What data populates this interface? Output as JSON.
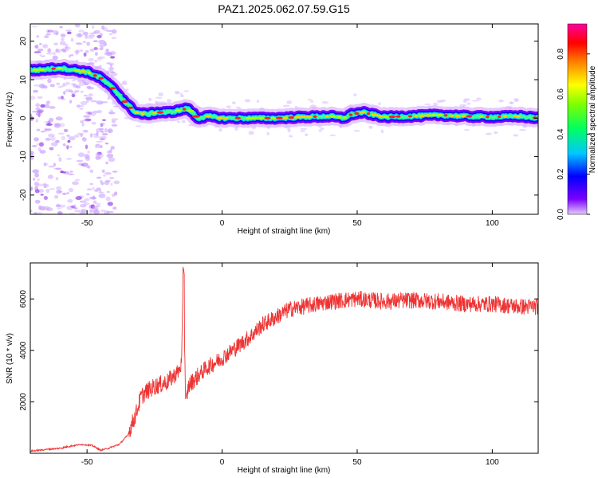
{
  "title": "PAZ1.2025.062.07.59.G15",
  "chart_data": [
    {
      "type": "heatmap",
      "xlabel": "Height of straight line (km)",
      "ylabel": "Frequency (Hz)",
      "xlim": [
        -71,
        117
      ],
      "ylim": [
        -25,
        24.5
      ],
      "xticks": [
        -50,
        0,
        50,
        100
      ],
      "yticks": [
        -20,
        -10,
        0,
        10,
        20
      ],
      "colorbar": {
        "label": "Normalized spectral amplitude",
        "range": [
          0,
          0.95
        ],
        "ticks": [
          0.0,
          0.2,
          0.4,
          0.6,
          0.8
        ],
        "colormap": [
          "#d9b3ff",
          "#7a00ff",
          "#0000ff",
          "#00c8ff",
          "#00ff80",
          "#80ff00",
          "#ffff00",
          "#ff8000",
          "#ff0000",
          "#ff00a0"
        ]
      },
      "ridge": {
        "x": [
          -68,
          -60,
          -55,
          -50,
          -45,
          -40,
          -35,
          -32,
          -28,
          -24,
          -20,
          -16,
          -13,
          -11,
          -9,
          -5,
          0,
          10,
          20,
          30,
          40,
          45,
          48,
          52,
          60,
          70,
          80,
          90,
          100,
          110,
          117
        ],
        "y": [
          12.5,
          13.0,
          12.5,
          12.0,
          10.5,
          7.5,
          3.5,
          1.5,
          1.0,
          1.5,
          1.5,
          2.0,
          2.5,
          1.5,
          0.0,
          0.5,
          0.0,
          0.0,
          0.0,
          0.3,
          0.5,
          0.0,
          1.0,
          1.5,
          0.3,
          0.5,
          0.8,
          0.5,
          0.3,
          0.5,
          0.0
        ]
      }
    },
    {
      "type": "line",
      "xlabel": "Height of straight line (km)",
      "ylabel": "SNR (10 * v/v)",
      "xlim": [
        -71,
        117
      ],
      "ylim": [
        0,
        7400
      ],
      "xticks": [
        -50,
        0,
        50,
        100
      ],
      "yticks": [
        2000,
        4000,
        6000
      ],
      "color": "#ee3333",
      "series": [
        {
          "x": [
            -71,
            -65,
            -60,
            -55,
            -52,
            -48,
            -45,
            -42,
            -38,
            -35,
            -32,
            -30,
            -28,
            -25,
            -22,
            -20,
            -18,
            -16,
            -15,
            -14.3,
            -13.5,
            -12.5,
            -11,
            -9,
            -6,
            -3,
            0,
            5,
            10,
            15,
            20,
            25,
            30,
            35,
            40,
            50,
            60,
            70,
            80,
            90,
            100,
            110,
            117
          ],
          "y": [
            80,
            150,
            200,
            300,
            350,
            300,
            120,
            200,
            350,
            700,
            1500,
            2200,
            2400,
            2600,
            2700,
            2800,
            3000,
            3200,
            3500,
            7300,
            1800,
            2600,
            2800,
            3000,
            3300,
            3500,
            3700,
            4100,
            4500,
            5000,
            5300,
            5600,
            5700,
            5800,
            5900,
            6000,
            5900,
            5950,
            5900,
            5800,
            5800,
            5700,
            5700
          ]
        }
      ]
    }
  ]
}
